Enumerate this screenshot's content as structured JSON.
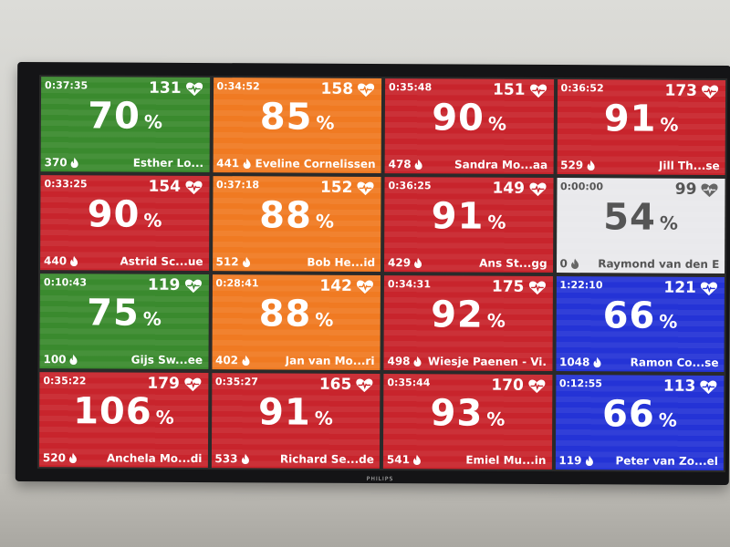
{
  "brand": "PHILIPS",
  "tiles": [
    {
      "time": "0:37:35",
      "hr": "131",
      "percent": "70",
      "kcal": "370",
      "name": "Esther Lo...",
      "color": "#3a8a2e"
    },
    {
      "time": "0:34:52",
      "hr": "158",
      "percent": "85",
      "kcal": "441",
      "name": "Eveline Cornelissen",
      "color": "#f07a22"
    },
    {
      "time": "0:35:48",
      "hr": "151",
      "percent": "90",
      "kcal": "478",
      "name": "Sandra Mo...aa",
      "color": "#c8242c"
    },
    {
      "time": "0:36:52",
      "hr": "173",
      "percent": "91",
      "kcal": "529",
      "name": "Jill Th...se",
      "color": "#c8242c"
    },
    {
      "time": "0:33:25",
      "hr": "154",
      "percent": "90",
      "kcal": "440",
      "name": "Astrid Sc...ue",
      "color": "#c8242c"
    },
    {
      "time": "0:37:18",
      "hr": "152",
      "percent": "88",
      "kcal": "512",
      "name": "Bob He...id",
      "color": "#f07a22"
    },
    {
      "time": "0:36:25",
      "hr": "149",
      "percent": "91",
      "kcal": "429",
      "name": "Ans St...gg",
      "color": "#c8242c"
    },
    {
      "time": "0:00:00",
      "hr": "99",
      "percent": "54",
      "kcal": "0",
      "name": "Raymond van den E",
      "color": "#e9e9ec"
    },
    {
      "time": "0:10:43",
      "hr": "119",
      "percent": "75",
      "kcal": "100",
      "name": "Gijs Sw...ee",
      "color": "#3a8a2e"
    },
    {
      "time": "0:28:41",
      "hr": "142",
      "percent": "88",
      "kcal": "402",
      "name": "Jan van Mo...ri",
      "color": "#f07a22"
    },
    {
      "time": "0:34:31",
      "hr": "175",
      "percent": "92",
      "kcal": "498",
      "name": "Wiesje Paenen - Vi.",
      "color": "#c8242c"
    },
    {
      "time": "1:22:10",
      "hr": "121",
      "percent": "66",
      "kcal": "1048",
      "name": "Ramon Co...se",
      "color": "#2433d6"
    },
    {
      "time": "0:35:22",
      "hr": "179",
      "percent": "106",
      "kcal": "520",
      "name": "Anchela Mo...di",
      "color": "#c8242c"
    },
    {
      "time": "0:35:27",
      "hr": "165",
      "percent": "91",
      "kcal": "533",
      "name": "Richard Se...de",
      "color": "#c8242c"
    },
    {
      "time": "0:35:44",
      "hr": "170",
      "percent": "93",
      "kcal": "541",
      "name": "Emiel Mu...in",
      "color": "#c8242c"
    },
    {
      "time": "0:12:55",
      "hr": "113",
      "percent": "66",
      "kcal": "119",
      "name": "Peter van Zo...el",
      "color": "#2433d6"
    }
  ],
  "percent_symbol": "%",
  "icons": {
    "heart": "heart-pulse-icon",
    "calories": "flame-icon"
  }
}
